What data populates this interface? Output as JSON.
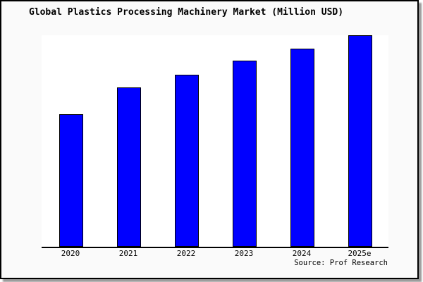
{
  "chart_data": {
    "type": "bar",
    "title": "Global Plastics Processing Machinery Market (Million USD)",
    "categories": [
      "2020",
      "2021",
      "2022",
      "2023",
      "2024",
      "2025e"
    ],
    "values": [
      62.8,
      75.3,
      81.5,
      87.9,
      93.8,
      100
    ],
    "value_scale_note": "No y-axis, tick values or data labels are shown in the figure; values are bar heights expressed as percent of the tallest bar (2025e = 100).",
    "xlabel": "",
    "ylabel": "",
    "ylim_relative": [
      0,
      100
    ],
    "grid": false,
    "legend": "none",
    "source_label": "Source: Prof Research",
    "colors": {
      "bar_fill": "#0000ff",
      "bar_border": "#000000",
      "plot_background": "#ffffff",
      "figure_background": "#fafafa",
      "axis": "#000000",
      "text": "#000000"
    }
  }
}
